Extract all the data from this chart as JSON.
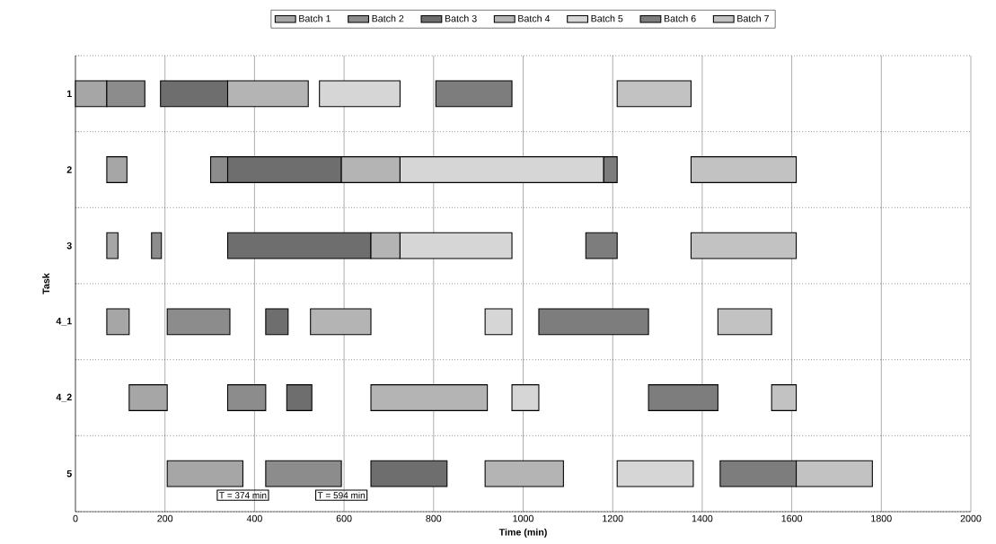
{
  "chart_data": {
    "type": "bar",
    "orientation": "horizontal",
    "xlabel": "Time (min)",
    "ylabel": "Task",
    "categories": [
      "1",
      "2",
      "3",
      "4_1",
      "4_2",
      "5"
    ],
    "xlim": [
      0,
      2000
    ],
    "xticks": [
      0,
      200,
      400,
      600,
      800,
      1000,
      1200,
      1400,
      1600,
      1800,
      2000
    ],
    "grid": true,
    "legend": "top",
    "series": [
      {
        "name": "Batch 1",
        "color": "#a6a6a6",
        "base": [
          0,
          70,
          70,
          70,
          120,
          205
        ],
        "values": [
          70,
          45,
          25,
          50,
          85,
          169
        ]
      },
      {
        "name": "Batch 2",
        "color": "#8c8c8c",
        "base": [
          70,
          302,
          170,
          205,
          340,
          425
        ],
        "values": [
          85,
          38,
          22,
          140,
          85,
          169
        ]
      },
      {
        "name": "Batch 3",
        "color": "#6e6e6e",
        "base": [
          190,
          340,
          340,
          425,
          472,
          660
        ],
        "values": [
          150,
          254,
          320,
          50,
          56,
          170
        ]
      },
      {
        "name": "Batch 4",
        "color": "#b4b4b4",
        "base": [
          340,
          594,
          660,
          525,
          660,
          915
        ],
        "values": [
          180,
          131,
          65,
          135,
          260,
          175
        ]
      },
      {
        "name": "Batch 5",
        "color": "#d6d6d6",
        "base": [
          545,
          725,
          725,
          915,
          975,
          1210
        ],
        "values": [
          180,
          455,
          250,
          60,
          60,
          170
        ]
      },
      {
        "name": "Batch 6",
        "color": "#7d7d7d",
        "base": [
          805,
          1180,
          1140,
          1035,
          1280,
          1440
        ],
        "values": [
          170,
          30,
          70,
          245,
          155,
          170
        ]
      },
      {
        "name": "Batch 7",
        "color": "#c2c2c2",
        "base": [
          1210,
          1375,
          1375,
          1435,
          1555,
          1610
        ],
        "values": [
          165,
          235,
          235,
          120,
          55,
          170
        ]
      }
    ],
    "annotations": [
      {
        "text": "T = 374 min",
        "x": 374,
        "y": "5"
      },
      {
        "text": "T = 594 min",
        "x": 594,
        "y": "5"
      }
    ]
  }
}
